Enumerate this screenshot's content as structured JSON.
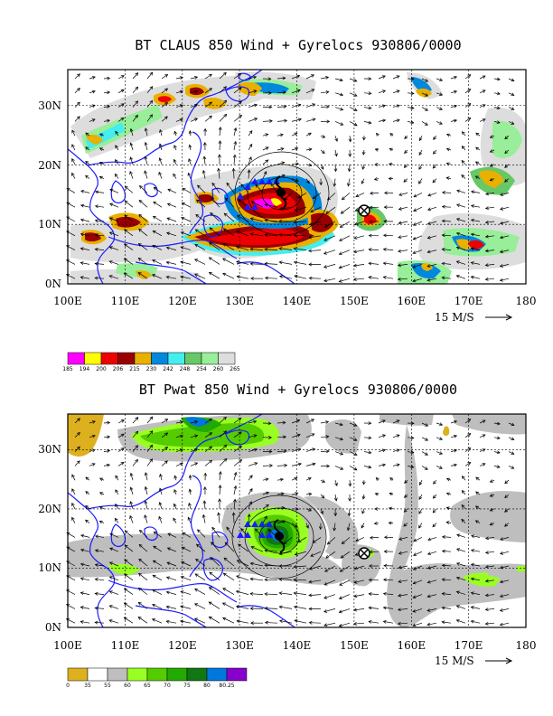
{
  "colors": {
    "coast": "#1b1bff",
    "claus_scale": [
      "#ff00ff",
      "#ffff00",
      "#ee0000",
      "#990000",
      "#e8b000",
      "#0088dd",
      "#44eeee",
      "#66c866",
      "#99ee99",
      "#dddddd"
    ],
    "pwat_scale": [
      "#ddb020",
      "#ffffff",
      "#bebebe",
      "#99ff22",
      "#55cc00",
      "#22aa00",
      "#117711",
      "#0077dd",
      "#8800cc"
    ]
  },
  "chart_data": [
    {
      "type": "heatmap",
      "title": "BT CLAUS 850 Wind + Gyrelocs 930806/0000",
      "x_ticks": [
        "100E",
        "110E",
        "120E",
        "130E",
        "140E",
        "150E",
        "160E",
        "170E",
        "180"
      ],
      "y_ticks": [
        "0N",
        "10N",
        "20N",
        "30N"
      ],
      "xlim": [
        100,
        180
      ],
      "ylim": [
        0,
        36
      ],
      "grid": true,
      "vector_scale_label": "15 M/S",
      "colorbar": {
        "labels": [
          "185",
          "194",
          "200",
          "206",
          "215",
          "230",
          "242",
          "248",
          "254",
          "260",
          "265"
        ],
        "colors": [
          "#ff00ff",
          "#ffff00",
          "#ee0000",
          "#990000",
          "#e8b000",
          "#0088dd",
          "#44eeee",
          "#66c866",
          "#99ee99",
          "#dddddd"
        ]
      },
      "gyre_marker": {
        "lon": 152,
        "lat": 13
      },
      "storm_center": {
        "lon": 138,
        "lat": 16
      }
    },
    {
      "type": "heatmap",
      "title": "BT Pwat 850 Wind + Gyrelocs 930806/0000",
      "x_ticks": [
        "100E",
        "110E",
        "120E",
        "130E",
        "140E",
        "150E",
        "160E",
        "170E",
        "180"
      ],
      "y_ticks": [
        "0N",
        "10N",
        "20N",
        "30N"
      ],
      "xlim": [
        100,
        180
      ],
      "ylim": [
        0,
        36
      ],
      "grid": true,
      "vector_scale_label": "15 M/S",
      "colorbar": {
        "labels": [
          "0",
          "35",
          "55",
          "60",
          "65",
          "70",
          "75",
          "80",
          "80.25"
        ],
        "colors": [
          "#ddb020",
          "#ffffff",
          "#bebebe",
          "#99ff22",
          "#55cc00",
          "#22aa00",
          "#117711",
          "#0077dd",
          "#8800cc"
        ]
      },
      "gyre_marker": {
        "lon": 152,
        "lat": 13
      },
      "storm_center": {
        "lon": 138,
        "lat": 16
      }
    }
  ]
}
